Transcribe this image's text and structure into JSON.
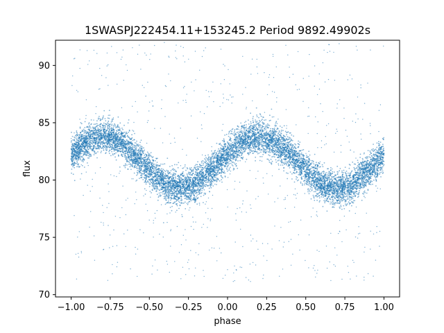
{
  "chart_data": {
    "type": "scatter",
    "title": "1SWASPJ222454.11+153245.2 Period 9892.49902s",
    "xlabel": "phase",
    "ylabel": "flux",
    "xlim": [
      -1.1,
      1.1
    ],
    "ylim": [
      69.8,
      92.2
    ],
    "x_ticks": [
      -1.0,
      -0.75,
      -0.5,
      -0.25,
      0.0,
      0.25,
      0.5,
      0.75,
      1.0
    ],
    "x_tick_labels": [
      "−1.00",
      "−0.75",
      "−0.50",
      "−0.25",
      "0.00",
      "0.25",
      "0.50",
      "0.75",
      "1.00"
    ],
    "y_ticks": [
      70,
      75,
      80,
      85,
      90
    ],
    "y_tick_labels": [
      "70",
      "75",
      "80",
      "85",
      "90"
    ],
    "grid": false,
    "point_color": "#1f77b4",
    "series": [
      {
        "x": [
          -1.0,
          -0.9,
          -0.8,
          -0.7,
          -0.6,
          -0.5,
          -0.4,
          -0.3,
          -0.2,
          -0.1,
          0.0,
          0.1,
          0.2,
          0.3,
          0.4,
          0.5,
          0.6,
          0.7,
          0.8,
          0.9,
          1.0
        ],
        "y": [
          82.2,
          83.3,
          83.9,
          83.5,
          82.3,
          80.8,
          79.6,
          79.2,
          79.6,
          80.9,
          82.3,
          83.4,
          83.8,
          83.4,
          82.3,
          80.9,
          79.6,
          79.2,
          79.6,
          80.8,
          82.2
        ],
        "band_half_width": 1.3
      }
    ]
  }
}
